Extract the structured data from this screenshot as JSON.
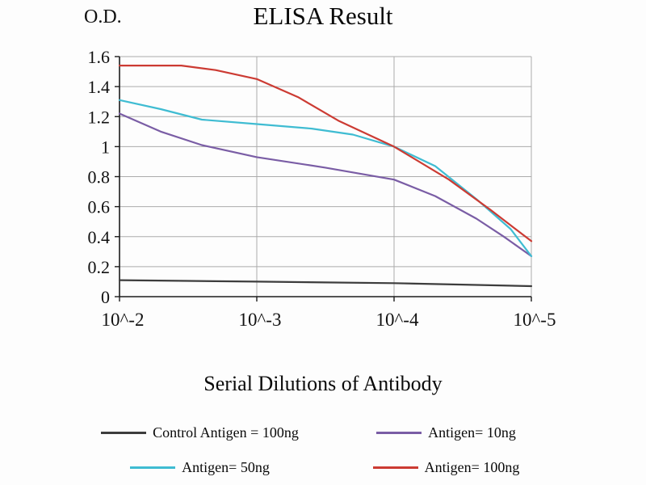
{
  "title": "ELISA Result",
  "y_axis_label": "O.D.",
  "x_axis_label": "Serial Dilutions of Antibody",
  "chart_data": {
    "type": "line",
    "title": "ELISA Result",
    "xlabel": "Serial Dilutions of Antibody",
    "ylabel": "O.D.",
    "xlim": [
      0,
      3
    ],
    "ylim": [
      0,
      1.6
    ],
    "grid": true,
    "legend_position": "bottom",
    "x_tick_labels": [
      "10^-2",
      "10^-3",
      "10^-4",
      "10^-5"
    ],
    "y_ticks": [
      0,
      0.2,
      0.4,
      0.6,
      0.8,
      1,
      1.2,
      1.4,
      1.6
    ],
    "y_tick_labels": [
      "0",
      "0.2",
      "0.4",
      "0.6",
      "0.8",
      "1",
      "1.2",
      "1.4",
      "1.6"
    ],
    "series": [
      {
        "name": "Control Antigen = 100ng",
        "color": "#3d3d3d",
        "points": [
          [
            0,
            0.11
          ],
          [
            0.5,
            0.105
          ],
          [
            1,
            0.1
          ],
          [
            1.5,
            0.095
          ],
          [
            2,
            0.09
          ],
          [
            2.5,
            0.08
          ],
          [
            3,
            0.07
          ]
        ]
      },
      {
        "name": "Antigen= 10ng",
        "color": "#7a5da5",
        "points": [
          [
            0,
            1.22
          ],
          [
            0.3,
            1.1
          ],
          [
            0.6,
            1.01
          ],
          [
            1,
            0.93
          ],
          [
            1.5,
            0.86
          ],
          [
            2,
            0.78
          ],
          [
            2.3,
            0.67
          ],
          [
            2.6,
            0.52
          ],
          [
            2.8,
            0.4
          ],
          [
            3,
            0.27
          ]
        ]
      },
      {
        "name": "Antigen= 50ng",
        "color": "#3fbcd2",
        "points": [
          [
            0,
            1.31
          ],
          [
            0.3,
            1.25
          ],
          [
            0.6,
            1.18
          ],
          [
            1,
            1.15
          ],
          [
            1.4,
            1.12
          ],
          [
            1.7,
            1.08
          ],
          [
            2,
            1.0
          ],
          [
            2.3,
            0.87
          ],
          [
            2.6,
            0.65
          ],
          [
            2.85,
            0.45
          ],
          [
            3,
            0.27
          ]
        ]
      },
      {
        "name": "Antigen= 100ng",
        "color": "#cc3b33",
        "points": [
          [
            0,
            1.54
          ],
          [
            0.45,
            1.54
          ],
          [
            0.7,
            1.51
          ],
          [
            1,
            1.45
          ],
          [
            1.3,
            1.33
          ],
          [
            1.6,
            1.17
          ],
          [
            2,
            1.0
          ],
          [
            2.4,
            0.78
          ],
          [
            2.7,
            0.58
          ],
          [
            3,
            0.37
          ]
        ]
      }
    ]
  }
}
